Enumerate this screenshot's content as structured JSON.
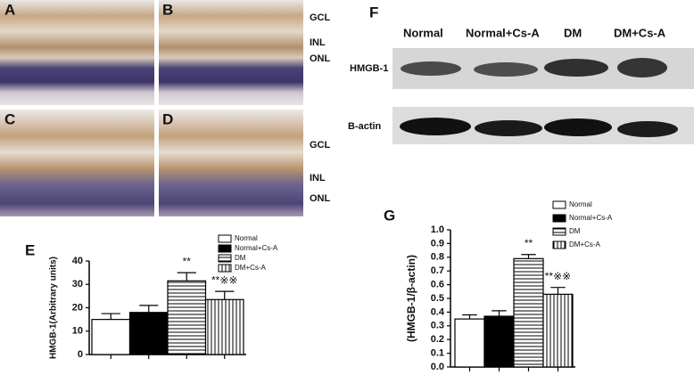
{
  "panel_letters": [
    "A",
    "B",
    "C",
    "D",
    "E",
    "F",
    "G"
  ],
  "retina_labels": {
    "top": [
      "GCL",
      "INL",
      "ONL"
    ],
    "bottom": [
      "GCL",
      "INL",
      "ONL"
    ]
  },
  "blot": {
    "lanes": [
      "Normal",
      "Normal+Cs-A",
      "DM",
      "DM+Cs-A"
    ],
    "rows": [
      "HMGB-1",
      "B-actin"
    ]
  },
  "chart_data": [
    {
      "type": "bar",
      "ylabel": "HMGB-1(Arbitrary units)",
      "categories": [
        "Normal",
        "Normal+Cs-A",
        "DM",
        "DM+Cs-A"
      ],
      "values": [
        15,
        18,
        31.5,
        23.5
      ],
      "errors": [
        2.5,
        3,
        3.5,
        3.5
      ],
      "annotations": [
        null,
        null,
        "**",
        "**※※"
      ],
      "fills": [
        "white",
        "black",
        "horizontal",
        "vertical"
      ],
      "ylim": [
        0,
        40
      ],
      "yticks": [
        0,
        10,
        20,
        30,
        40
      ],
      "legend": "top-right"
    },
    {
      "type": "bar",
      "ylabel": "(HMGB-1/β-actin)",
      "categories": [
        "Normal",
        "Normal+Cs-A",
        "DM",
        "DM+Cs-A"
      ],
      "values": [
        0.35,
        0.37,
        0.79,
        0.53
      ],
      "errors": [
        0.03,
        0.04,
        0.03,
        0.05
      ],
      "annotations": [
        null,
        null,
        "**",
        "**※※"
      ],
      "fills": [
        "white",
        "black",
        "horizontal",
        "vertical"
      ],
      "ylim": [
        0,
        1
      ],
      "yticks": [
        {
          "value": 0,
          "label": "0.0"
        },
        0.1,
        0.2,
        0.3,
        0.4,
        0.5,
        0.6,
        0.7,
        0.8,
        0.9,
        {
          "value": 1,
          "label": "1.0"
        }
      ],
      "legend": "top-right"
    }
  ]
}
